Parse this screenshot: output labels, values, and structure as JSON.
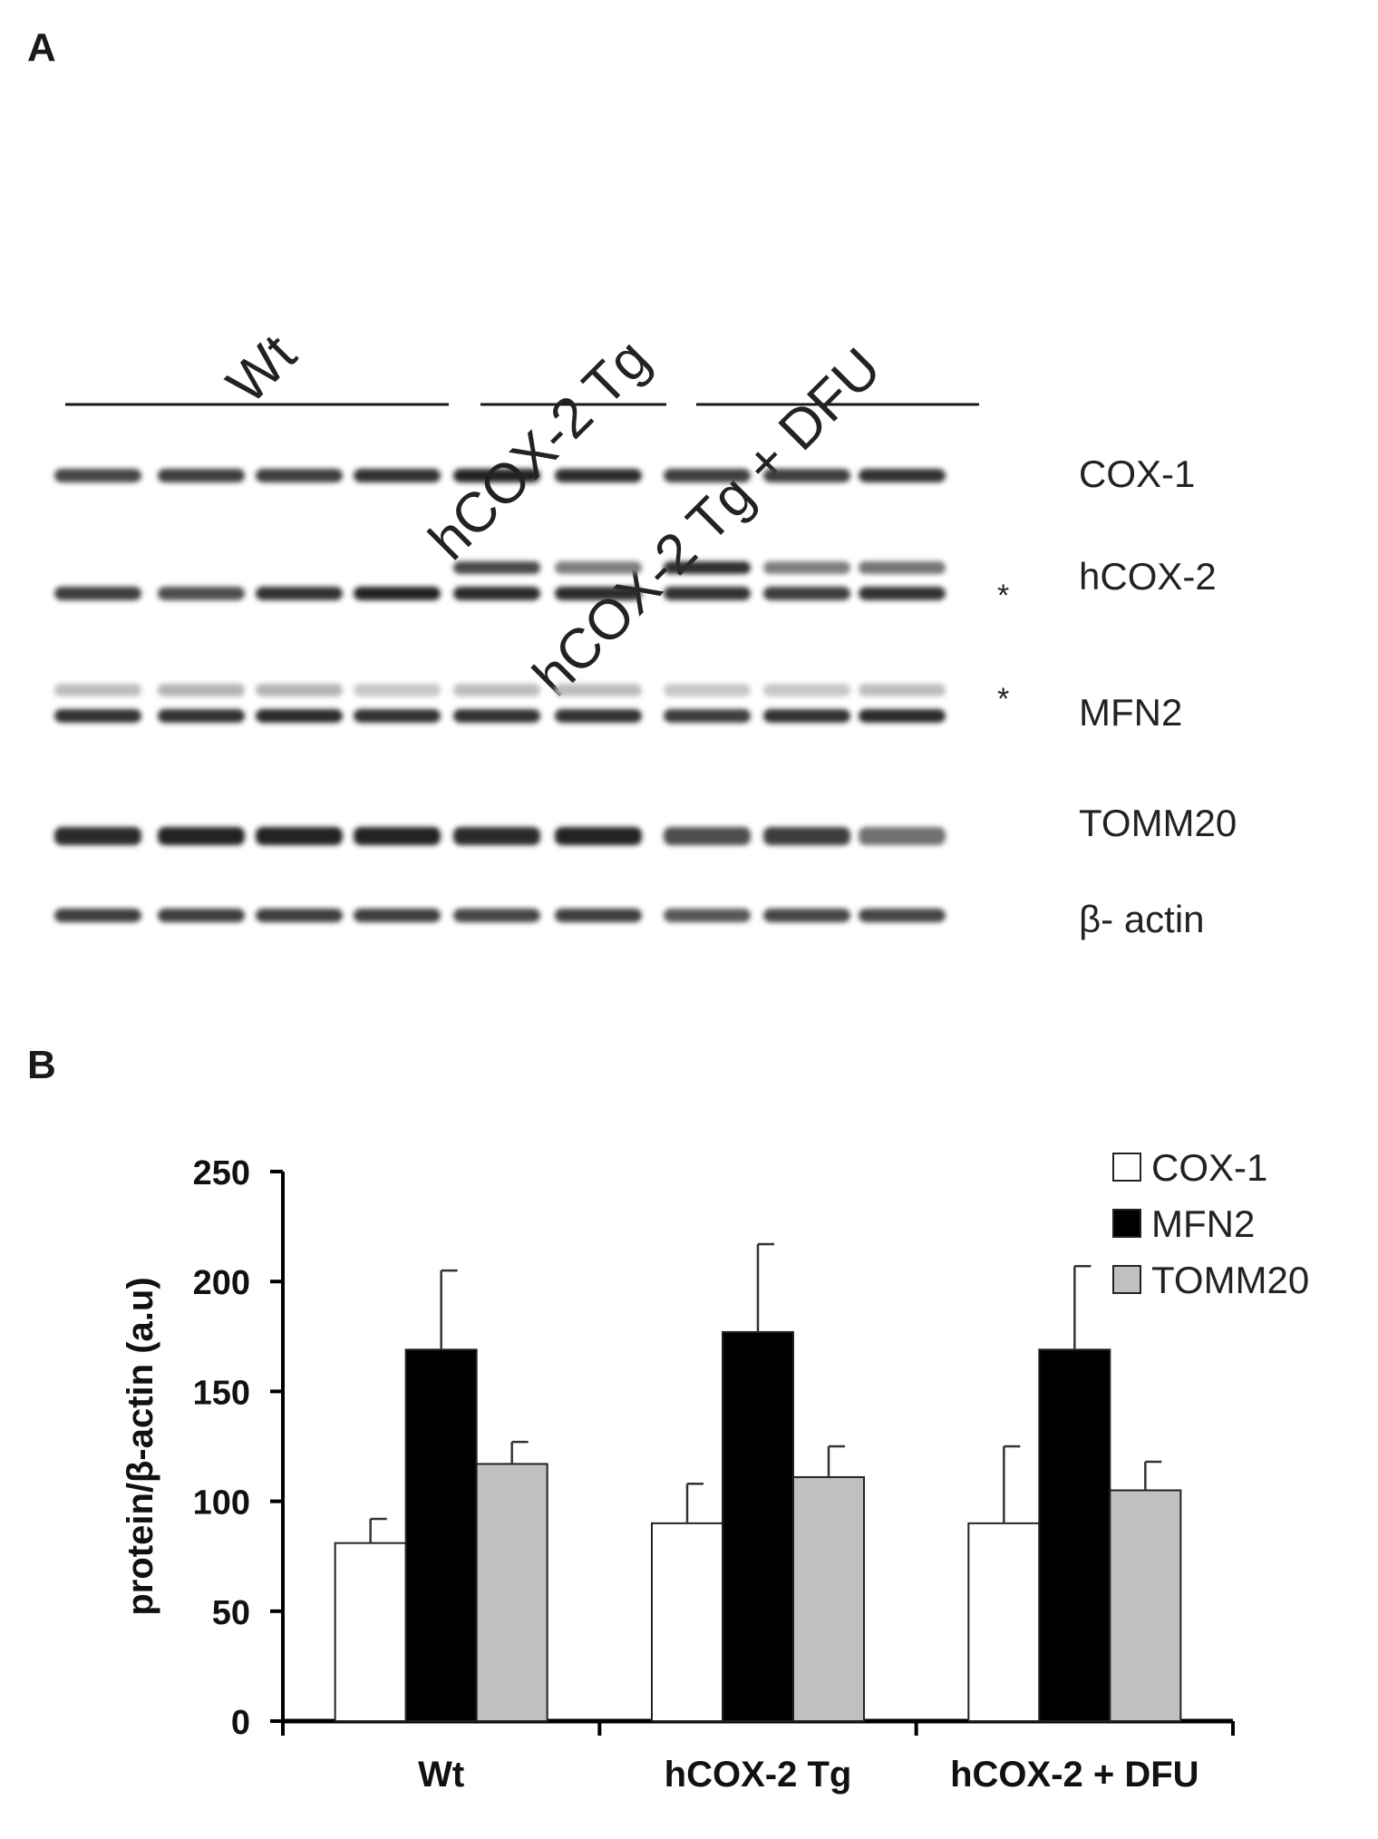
{
  "panels": {
    "a": "A",
    "b": "B"
  },
  "blot": {
    "groups": [
      {
        "label": "Wt",
        "lanes": [
          0,
          1,
          2,
          3
        ]
      },
      {
        "label": "hCOX-2 Tg",
        "lanes": [
          4,
          5
        ]
      },
      {
        "label": "hCOX-2 Tg + DFU",
        "lanes": [
          6,
          7,
          8
        ]
      }
    ],
    "lane_count": 9,
    "rows": [
      {
        "label": "COX-1",
        "intensity": [
          0.75,
          0.8,
          0.8,
          0.85,
          0.95,
          0.9,
          0.8,
          0.8,
          0.85
        ],
        "upper": false
      },
      {
        "label": "hCOX-2",
        "intensity": [
          0.8,
          0.7,
          0.85,
          0.95,
          0.9,
          0.9,
          0.85,
          0.8,
          0.85
        ],
        "upper": true,
        "upper_intensity": [
          0,
          0,
          0,
          0,
          0.85,
          0.55,
          1.0,
          0.55,
          0.6
        ],
        "asterisk": "*"
      },
      {
        "label": "MFN2",
        "intensity": [
          0.85,
          0.85,
          0.9,
          0.85,
          0.85,
          0.85,
          0.8,
          0.85,
          0.9
        ],
        "upper": true,
        "upper_intensity": [
          0.2,
          0.25,
          0.25,
          0.15,
          0.2,
          0.2,
          0.15,
          0.15,
          0.2
        ],
        "asterisk": "*"
      },
      {
        "label": "TOMM20",
        "intensity": [
          0.9,
          0.95,
          0.95,
          0.95,
          0.9,
          0.95,
          0.7,
          0.8,
          0.5
        ],
        "upper": false
      },
      {
        "label": "β- actin",
        "intensity": [
          0.8,
          0.8,
          0.8,
          0.8,
          0.75,
          0.8,
          0.65,
          0.75,
          0.75
        ],
        "upper": false
      }
    ]
  },
  "chart_data": {
    "type": "bar",
    "categories": [
      "Wt",
      "hCOX-2 Tg",
      "hCOX-2 + DFU"
    ],
    "series": [
      {
        "name": "COX-1",
        "values": [
          81,
          90,
          90
        ],
        "errors": [
          11,
          18,
          35
        ],
        "color": "#ffffff"
      },
      {
        "name": "MFN2",
        "values": [
          169,
          177,
          169
        ],
        "errors": [
          36,
          40,
          38
        ],
        "color": "#000000"
      },
      {
        "name": "TOMM20",
        "values": [
          117,
          111,
          105
        ],
        "errors": [
          10,
          14,
          13
        ],
        "color": "#c0c0c0"
      }
    ],
    "ylabel": "protein/β-actin (a.u)",
    "ylim": [
      0,
      250
    ],
    "yticks": [
      0,
      50,
      100,
      150,
      200,
      250
    ],
    "legend_position": "top-right",
    "grid": false
  }
}
